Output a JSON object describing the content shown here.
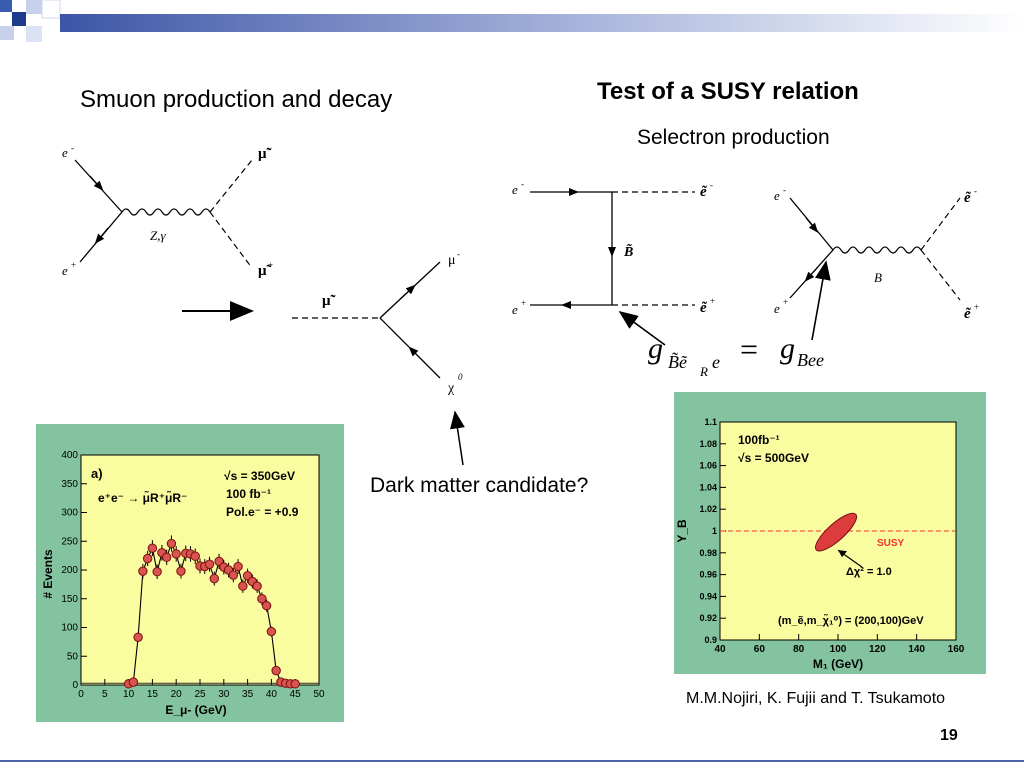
{
  "slide": {
    "title_left": "Smuon production and decay",
    "title_right": "Test of a SUSY relation",
    "subtitle_right": "Selectron production",
    "dark_matter_label": "Dark matter candidate?",
    "authors": "M.M.Nojiri, K. Fujii and T. Tsukamoto",
    "page_number": "19"
  },
  "feynman": {
    "smuon_prod": {
      "e_minus": "e",
      "e_plus": "e",
      "propagator": "Z,γ",
      "smu_minus": "μ̃",
      "smu_plus": "μ̃"
    },
    "smuon_decay": {
      "smu": "μ̃",
      "mu": "μ",
      "chi": "χ"
    },
    "t_channel": {
      "e_minus": "e",
      "e_plus": "e",
      "sel_minus": "ẽ",
      "sel_plus": "ẽ",
      "bino": "B̃"
    },
    "s_channel": {
      "e_minus": "e",
      "e_plus": "e",
      "propagator": "B",
      "sel_minus": "ẽ",
      "sel_plus": "ẽ"
    },
    "relation": {
      "lhs": "g",
      "lhs_sub": "B̃ẽ",
      "lhs_subsub": "R",
      "lhs_sub2": "e",
      "eq": "=",
      "rhs": "g",
      "rhs_sub": "Bee"
    }
  },
  "colors": {
    "panel_green": "#84c3a0",
    "plot_yellow": "#fafca0",
    "marker_red": "#d9534f",
    "ellipse_red": "#dd3c3c",
    "susy_line": "#e33"
  },
  "chart_data": [
    {
      "type": "scatter",
      "title": "a)",
      "xlabel": "E_μ- (GeV)",
      "ylabel": "# Events",
      "xlim": [
        0,
        50
      ],
      "ylim": [
        0,
        400
      ],
      "xticks": [
        "0",
        "5",
        "10",
        "15",
        "20",
        "25",
        "30",
        "35",
        "40",
        "45",
        "50"
      ],
      "yticks": [
        "0",
        "50",
        "100",
        "150",
        "200",
        "250",
        "300",
        "350",
        "400"
      ],
      "annotations": {
        "process": "e⁺e⁻ → μ̃R⁺μ̃R⁻",
        "sqrt_s": "√s = 350GeV",
        "lumi": "100 fb⁻¹",
        "pol": "Pol.e⁻ = +0.9"
      },
      "x": [
        10,
        11,
        12,
        13,
        14,
        15,
        16,
        17,
        18,
        19,
        20,
        21,
        22,
        23,
        24,
        25,
        26,
        27,
        28,
        29,
        30,
        31,
        32,
        33,
        34,
        35,
        36,
        37,
        38,
        39,
        40,
        41,
        42,
        43,
        44,
        45
      ],
      "values": [
        2,
        5,
        83,
        198,
        220,
        238,
        197,
        230,
        222,
        246,
        228,
        198,
        229,
        228,
        224,
        207,
        206,
        210,
        185,
        215,
        205,
        200,
        191,
        206,
        172,
        190,
        180,
        172,
        150,
        138,
        93,
        25,
        5,
        3,
        2,
        2
      ]
    },
    {
      "type": "scatter",
      "xlabel": "M₁ (GeV)",
      "ylabel": "Y_B",
      "xlim": [
        40,
        160
      ],
      "ylim": [
        0.9,
        1.1
      ],
      "xticks": [
        "40",
        "60",
        "80",
        "100",
        "120",
        "140",
        "160"
      ],
      "yticks": [
        "0.9",
        "0.92",
        "0.94",
        "0.96",
        "0.98",
        "1",
        "1.02",
        "1.04",
        "1.06",
        "1.08",
        "1.1"
      ],
      "annotations": {
        "lumi": "100fb⁻¹",
        "sqrt_s": "√s = 500GeV",
        "susy": "SUSY",
        "chi2": "Δχ² = 1.0",
        "masses": "(m_ẽ,m_χ̃₁⁰) = (200,100)GeV"
      },
      "susy_y": 1.0,
      "ellipse": {
        "center": [
          99,
          0.999
        ],
        "half_width": 10,
        "half_height": 0.007,
        "angle_deg": -42
      }
    }
  ]
}
